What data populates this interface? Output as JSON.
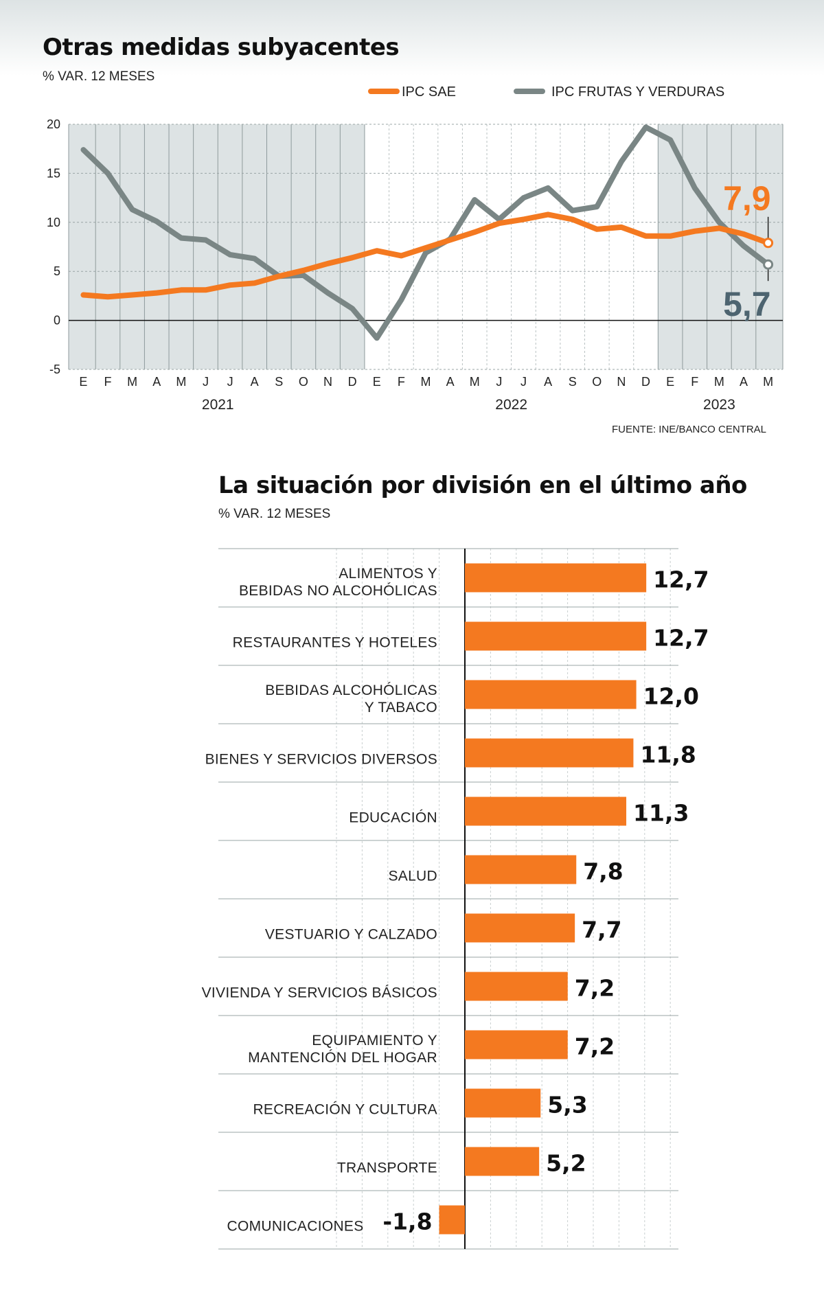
{
  "colors": {
    "orange": "#f47920",
    "gray": "#7a8685",
    "shade": "#dde3e4",
    "sae_label": "#f47920",
    "frutas_label": "#4d6470"
  },
  "chart_data": [
    {
      "type": "line",
      "title": "Otras medidas subyacentes",
      "subtitle": "% VAR. 12 MESES",
      "source": "FUENTE: INE/BANCO CENTRAL",
      "x": [
        "E",
        "F",
        "M",
        "A",
        "M",
        "J",
        "J",
        "A",
        "S",
        "O",
        "N",
        "D",
        "E",
        "F",
        "M",
        "A",
        "M",
        "J",
        "J",
        "A",
        "S",
        "O",
        "N",
        "D",
        "E",
        "F",
        "M",
        "A",
        "M"
      ],
      "years": [
        {
          "label": "2021",
          "from": 0,
          "to": 11
        },
        {
          "label": "2022",
          "from": 12,
          "to": 23
        },
        {
          "label": "2023",
          "from": 24,
          "to": 28
        }
      ],
      "ylim": [
        -5,
        20
      ],
      "yticks": [
        "20",
        "15",
        "10",
        "5",
        "0",
        "-5"
      ],
      "series": [
        {
          "name": "IPC SAE",
          "color": "orange",
          "values": [
            2.6,
            2.4,
            2.6,
            2.8,
            3.1,
            3.1,
            3.6,
            3.8,
            4.5,
            5.1,
            5.8,
            6.4,
            7.1,
            6.6,
            7.4,
            8.2,
            9.0,
            9.9,
            10.3,
            10.8,
            10.3,
            9.3,
            9.5,
            8.6,
            8.6,
            9.1,
            9.4,
            8.8,
            7.9
          ],
          "last_label": "7,9"
        },
        {
          "name": "IPC FRUTAS Y VERDURAS",
          "color": "gray",
          "values": [
            17.4,
            15.0,
            11.3,
            10.1,
            8.4,
            8.2,
            6.7,
            6.3,
            4.5,
            4.6,
            2.8,
            1.2,
            -1.8,
            2.1,
            6.9,
            8.3,
            12.3,
            10.3,
            12.5,
            13.5,
            11.2,
            11.6,
            16.2,
            19.7,
            18.4,
            13.5,
            10.0,
            7.6,
            5.7
          ],
          "last_label": "5,7"
        }
      ]
    },
    {
      "type": "bar",
      "orientation": "horizontal",
      "title": "La situación por división en el último año",
      "subtitle": "% VAR. 12 MESES",
      "categories": [
        [
          "ALIMENTOS Y",
          "BEBIDAS NO ALCOHÓLICAS"
        ],
        [
          "RESTAURANTES Y HOTELES"
        ],
        [
          "BEBIDAS ALCOHÓLICAS",
          "Y TABACO"
        ],
        [
          "BIENES Y SERVICIOS DIVERSOS"
        ],
        [
          "EDUCACIÓN"
        ],
        [
          "SALUD"
        ],
        [
          "VESTUARIO Y CALZADO"
        ],
        [
          "VIVIENDA Y SERVICIOS BÁSICOS"
        ],
        [
          "EQUIPAMIENTO Y",
          "MANTENCIÓN DEL HOGAR"
        ],
        [
          "RECREACIÓN Y CULTURA"
        ],
        [
          "TRANSPORTE"
        ],
        [
          "COMUNICACIONES"
        ]
      ],
      "values": [
        12.7,
        12.7,
        12.0,
        11.8,
        11.3,
        7.8,
        7.7,
        7.2,
        7.2,
        5.3,
        5.2,
        -1.8
      ],
      "value_labels": [
        "12,7",
        "12,7",
        "12,0",
        "11,8",
        "11,3",
        "7,8",
        "7,7",
        "7,2",
        "7,2",
        "5,3",
        "5,2",
        "-1,8"
      ]
    }
  ]
}
